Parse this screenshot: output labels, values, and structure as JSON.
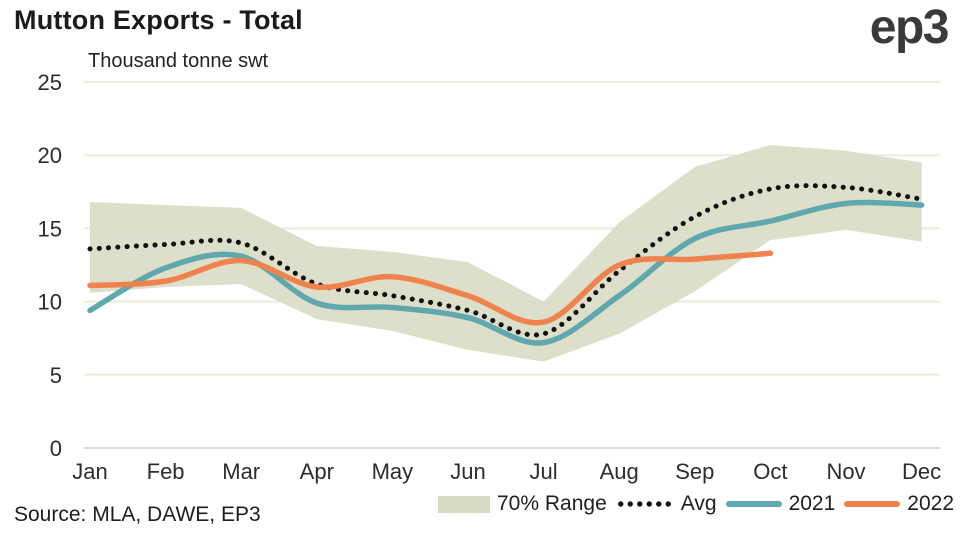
{
  "header": {
    "title": "Mutton Exports - Total",
    "subtitle": "Thousand tonne swt",
    "logo_text": "ep3"
  },
  "source_note": "Source: MLA, DAWE, EP3",
  "legend": [
    {
      "label": "70% Range",
      "swatch": "band",
      "color": "#d9dcc4"
    },
    {
      "label": "Avg",
      "swatch": "dotted-line",
      "color": "#111111"
    },
    {
      "label": "2021",
      "swatch": "line",
      "color": "#5fa8ad"
    },
    {
      "label": "2022",
      "swatch": "line",
      "color": "#f0824e"
    }
  ],
  "chart_data": {
    "type": "line",
    "title": "Mutton Exports - Total",
    "ylabel": "Thousand tonne swt",
    "xlabel": "",
    "categories": [
      "Jan",
      "Feb",
      "Mar",
      "Apr",
      "May",
      "Jun",
      "Jul",
      "Aug",
      "Sep",
      "Oct",
      "Nov",
      "Dec"
    ],
    "ylim": [
      0,
      25
    ],
    "y_ticks": [
      0,
      5,
      10,
      15,
      20,
      25
    ],
    "grid": "horizontal",
    "grid_color": "#ececda",
    "baseline_color": "#dcdcdc",
    "tick_color": "#2d2d2d",
    "legend_position": "bottom",
    "series": [
      {
        "name": "70% Range",
        "type": "band",
        "color": "#d9dcc4",
        "upper": [
          16.8,
          16.6,
          16.4,
          13.8,
          13.4,
          12.7,
          10.0,
          15.4,
          19.2,
          20.7,
          20.3,
          19.5
        ],
        "lower": [
          10.6,
          11.0,
          11.2,
          8.8,
          8.0,
          6.7,
          5.9,
          7.8,
          10.7,
          14.2,
          14.9,
          14.1
        ]
      },
      {
        "name": "Avg",
        "type": "dotted-line",
        "color": "#111111",
        "values": [
          13.6,
          13.9,
          14.0,
          11.2,
          10.4,
          9.4,
          7.8,
          12.1,
          15.8,
          17.7,
          17.8,
          17.0
        ]
      },
      {
        "name": "2021",
        "type": "line",
        "color": "#5fa8ad",
        "values": [
          9.4,
          12.3,
          13.1,
          9.9,
          9.6,
          8.9,
          7.2,
          10.4,
          14.3,
          15.5,
          16.7,
          16.6
        ]
      },
      {
        "name": "2022",
        "type": "line",
        "color": "#f0824e",
        "values": [
          11.1,
          11.4,
          12.8,
          11.0,
          11.7,
          10.4,
          8.6,
          12.5,
          12.9,
          13.3,
          null,
          null
        ]
      }
    ]
  }
}
